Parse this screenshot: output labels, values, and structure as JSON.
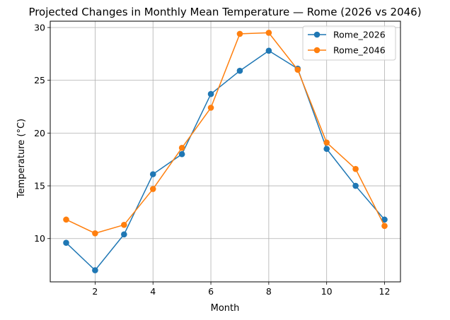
{
  "chart_data": {
    "type": "line",
    "title": "Projected Changes in Monthly Mean Temperature — Rome (2026 vs 2046)",
    "xlabel": "Month",
    "ylabel": "Temperature (°C)",
    "x": [
      1,
      2,
      3,
      4,
      5,
      6,
      7,
      8,
      9,
      10,
      11,
      12
    ],
    "xlim": [
      0.45,
      12.55
    ],
    "ylim": [
      5.9,
      30.6
    ],
    "xticks": [
      2,
      4,
      6,
      8,
      10,
      12
    ],
    "yticks": [
      10,
      15,
      20,
      25,
      30
    ],
    "grid": true,
    "legend": "top-right",
    "series": [
      {
        "name": "Rome_2026",
        "color": "#1f77b4",
        "marker": "circle",
        "values": [
          9.6,
          7.0,
          10.4,
          16.1,
          18.0,
          23.7,
          25.9,
          27.8,
          26.1,
          18.5,
          15.0,
          11.8
        ]
      },
      {
        "name": "Rome_2046",
        "color": "#ff7f0e",
        "marker": "circle",
        "values": [
          11.8,
          10.5,
          11.3,
          14.7,
          18.6,
          22.4,
          29.4,
          29.5,
          26.0,
          19.1,
          16.6,
          11.2
        ]
      }
    ]
  }
}
